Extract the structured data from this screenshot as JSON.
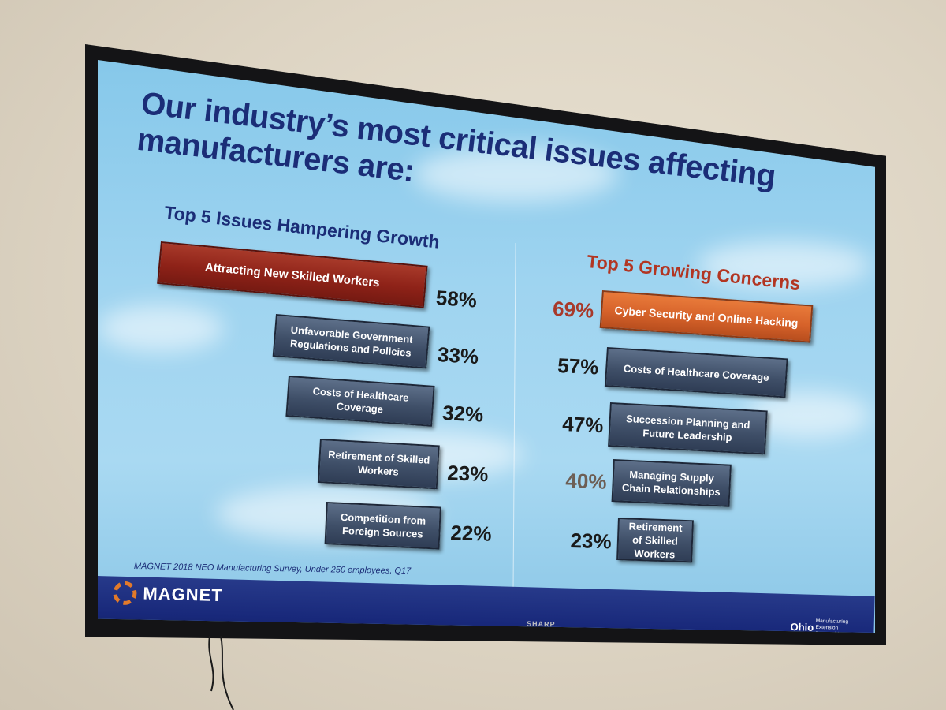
{
  "slide": {
    "title": "Our industry’s most critical issues affecting manufacturers are:",
    "left": {
      "heading": "Top 5 Issues Hampering Growth",
      "items": [
        {
          "label": "Attracting New Skilled Workers",
          "pct": "58%"
        },
        {
          "label": "Unfavorable Government Regulations and Policies",
          "pct": "33%"
        },
        {
          "label": "Costs of Healthcare Coverage",
          "pct": "32%"
        },
        {
          "label": "Retirement of Skilled Workers",
          "pct": "23%"
        },
        {
          "label": "Competition from Foreign Sources",
          "pct": "22%"
        }
      ]
    },
    "right": {
      "heading": "Top 5 Growing Concerns",
      "items": [
        {
          "label": "Cyber Security and Online Hacking",
          "pct": "69%"
        },
        {
          "label": "Costs of Healthcare Coverage",
          "pct": "57%"
        },
        {
          "label": "Succession Planning and Future Leadership",
          "pct": "47%"
        },
        {
          "label": "Managing Supply Chain Relationships",
          "pct": "40%"
        },
        {
          "label": "Retirement of Skilled Workers",
          "pct": "23%"
        }
      ]
    },
    "source": "MAGNET 2018 NEO Manufacturing Survey, Under 250 employees, Q17",
    "footer": {
      "logo": "MAGNET",
      "partner_name": "Ohio",
      "partner_sub": "Manufacturing Extension Partnership"
    }
  },
  "tv": {
    "brand": "SHARP"
  },
  "colors": {
    "title": "#1b2d77",
    "highlight_red": "#8e2218",
    "highlight_orange": "#d6622a",
    "box_gray": "#3f4f68",
    "footer_blue": "#18287a"
  }
}
